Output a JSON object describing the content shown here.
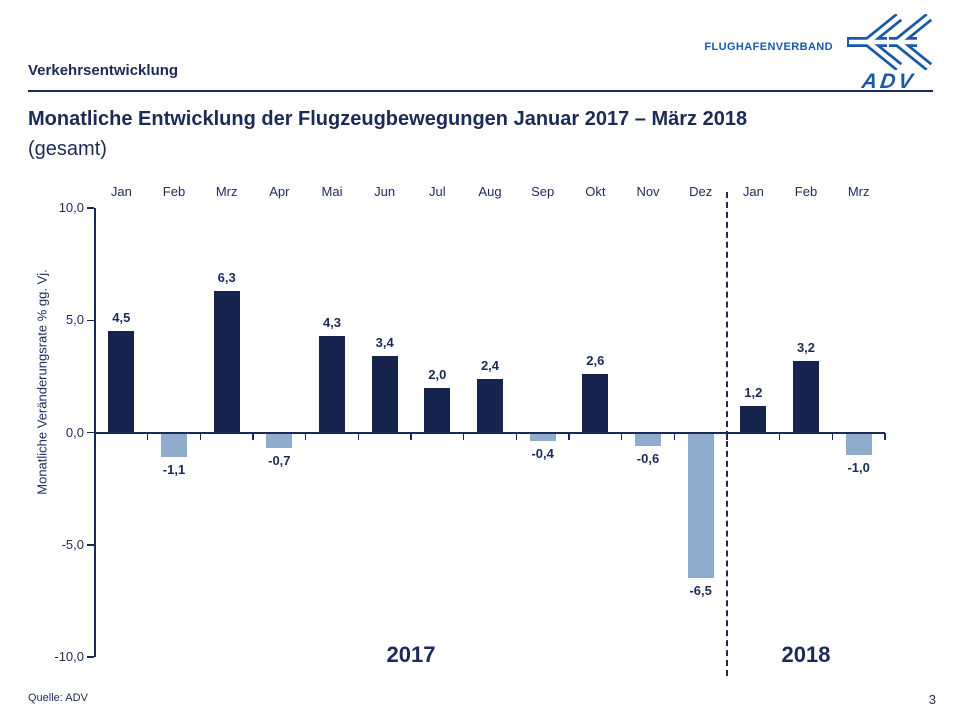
{
  "colors": {
    "accent_navy": "#1C2A57",
    "logo_blue": "#1A5AA5",
    "positive_bar": "#17254E",
    "negative_bar": "#8FACCD"
  },
  "header": {
    "section_title": "Verkehrsentwicklung"
  },
  "logo": {
    "wordmark": "FLUGHAFENVERBAND",
    "abbr": "ADV"
  },
  "title": {
    "line1": "Monatliche Entwicklung der Flugzeugbewegungen Januar 2017 – März 2018",
    "line2": "(gesamt)"
  },
  "chart_data": {
    "type": "bar",
    "title": "",
    "xlabel": "",
    "ylabel": "Monatliche Veränderungsrate % gg. Vj.",
    "ylim": [
      -10,
      10
    ],
    "ytick_values": [
      10,
      5,
      0,
      -5,
      -10
    ],
    "ytick_labels": [
      "10,0",
      "5,0",
      "0,0",
      "-5,0",
      "-10,0"
    ],
    "grid": false,
    "legend": "none",
    "categories": [
      "Jan",
      "Feb",
      "Mrz",
      "Apr",
      "Mai",
      "Jun",
      "Jul",
      "Aug",
      "Sep",
      "Okt",
      "Nov",
      "Dez",
      "Jan",
      "Feb",
      "Mrz"
    ],
    "values": [
      4.5,
      -1.1,
      6.3,
      -0.7,
      4.3,
      3.4,
      2.0,
      2.4,
      -0.4,
      2.6,
      -0.6,
      -6.5,
      1.2,
      3.2,
      -1.0
    ],
    "value_labels": [
      "4,5",
      "-1,1",
      "6,3",
      "-0,7",
      "4,3",
      "3,4",
      "2,0",
      "2,4",
      "-0,4",
      "2,6",
      "-0,6",
      "-6,5",
      "1,2",
      "3,2",
      "-1,0"
    ],
    "year_groups": [
      {
        "label": "2017",
        "months": 12
      },
      {
        "label": "2018",
        "months": 3
      }
    ],
    "separator_after": 12
  },
  "footer": {
    "source": "Quelle: ADV",
    "page_number": "3"
  }
}
